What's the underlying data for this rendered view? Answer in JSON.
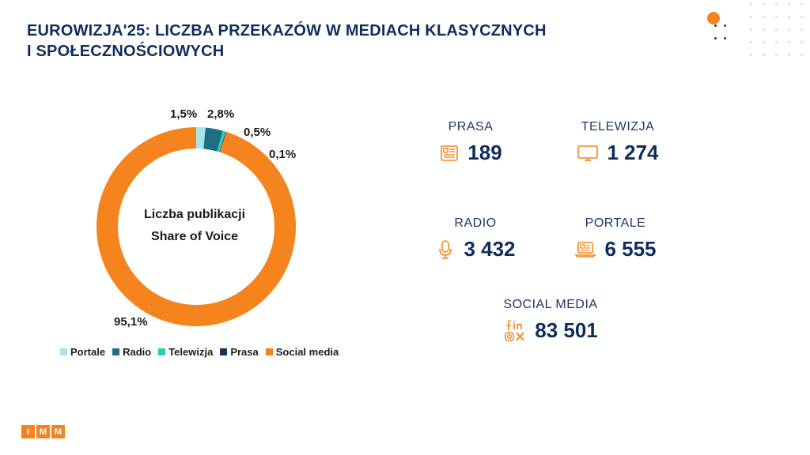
{
  "title": {
    "line1": "EUROWIZJA'25: LICZBA PRZEKAZÓW W MEDIACH KLASYCZNYCH",
    "line2": "I SPOŁECZNOŚCIOWYCH"
  },
  "chart_data": {
    "type": "pie",
    "variant": "donut",
    "center_label": [
      "Liczba publikacji",
      "Share of Voice"
    ],
    "categories": [
      "Portale",
      "Radio",
      "Telewizja",
      "Prasa",
      "Social media"
    ],
    "values": [
      1.5,
      2.8,
      0.5,
      0.1,
      95.1
    ],
    "value_labels": [
      "1,5%",
      "2,8%",
      "0,5%",
      "0,1%",
      "95,1%"
    ],
    "colors": [
      "#a9e3ea",
      "#1e6f86",
      "#2bcfb8",
      "#14335e",
      "#f5841f"
    ],
    "legend_position": "bottom"
  },
  "stats": {
    "prasa": {
      "label": "PRASA",
      "value": "189",
      "icon": "newspaper-icon"
    },
    "telewizja": {
      "label": "TELEWIZJA",
      "value": "1 274",
      "icon": "tv-icon"
    },
    "radio": {
      "label": "RADIO",
      "value": "3 432",
      "icon": "microphone-icon"
    },
    "portale": {
      "label": "PORTALE",
      "value": "6 555",
      "icon": "laptop-icon"
    },
    "social": {
      "label": "SOCIAL MEDIA",
      "value": "83 501",
      "icon": "social-media-icon"
    }
  },
  "logo": {
    "letters": [
      "I",
      "M",
      "M"
    ]
  },
  "colors": {
    "accent": "#f5841f",
    "navy": "#0f2d5c"
  }
}
